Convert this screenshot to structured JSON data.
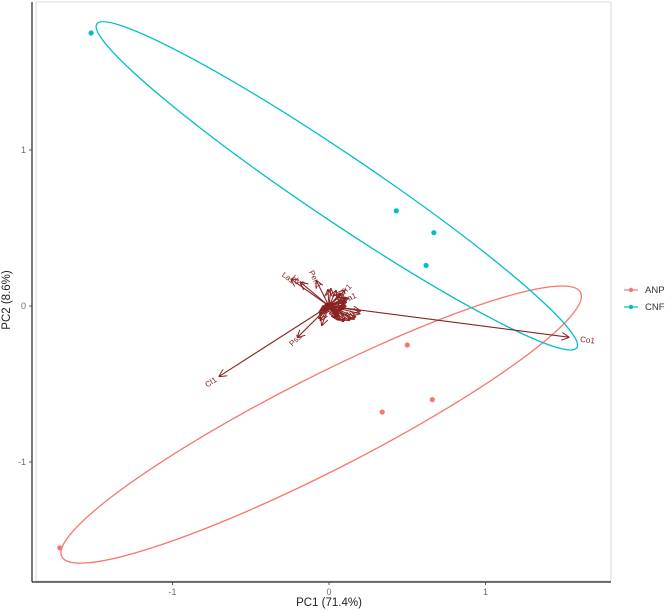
{
  "chart_data": {
    "type": "scatter",
    "subtype": "pca-biplot",
    "title": "",
    "xlabel": "PC1 (71.4%)",
    "ylabel": "PC2 (8.6%)",
    "xlim": [
      -1.85,
      1.82
    ],
    "ylim": [
      -1.77,
      1.95
    ],
    "x_ticks": [
      -1,
      0,
      1
    ],
    "y_ticks": [
      -1,
      0,
      1
    ],
    "x_tick_labels": [
      "-1",
      "0",
      "1"
    ],
    "y_tick_labels": [
      "-1",
      "0",
      "1"
    ],
    "grid": false,
    "legend_position": "right",
    "series": [
      {
        "name": "ANP",
        "color": "#f8766d",
        "points": [
          {
            "x": 0.5,
            "y": -0.25
          },
          {
            "x": 0.34,
            "y": -0.68
          },
          {
            "x": 0.66,
            "y": -0.6
          },
          {
            "x": -1.72,
            "y": -1.55
          }
        ],
        "ellipse": {
          "cx": -0.05,
          "cy": -0.76,
          "rx": 1.86,
          "ry": 0.3,
          "angle_deg": -27
        }
      },
      {
        "name": "CNF",
        "color": "#00bfc4",
        "points": [
          {
            "x": -1.52,
            "y": 1.75
          },
          {
            "x": 0.43,
            "y": 0.61
          },
          {
            "x": 0.67,
            "y": 0.47
          },
          {
            "x": 0.62,
            "y": 0.26
          }
        ],
        "ellipse": {
          "cx": 0.05,
          "cy": 0.77,
          "rx": 1.85,
          "ry": 0.21,
          "angle_deg": 34
        }
      }
    ],
    "loadings": {
      "color": "#8b2323",
      "vectors": [
        {
          "label": "Co1",
          "x": 1.53,
          "y": -0.2
        },
        {
          "label": "Cl1",
          "x": -0.7,
          "y": -0.45
        },
        {
          "label": "Ps1",
          "x": -0.2,
          "y": -0.2
        },
        {
          "label": "Pen1",
          "x": -0.08,
          "y": 0.16
        },
        {
          "label": "Hy2",
          "x": -0.18,
          "y": 0.15
        },
        {
          "label": "La1",
          "x": -0.24,
          "y": 0.17
        },
        {
          "label": "Tr1",
          "x": 0.1,
          "y": 0.1
        },
        {
          "label": "Pa1",
          "x": 0.12,
          "y": 0.05
        }
      ]
    }
  },
  "legend": {
    "items": [
      {
        "label": "ANP",
        "color": "#f8766d"
      },
      {
        "label": "CNF",
        "color": "#00bfc4"
      }
    ]
  },
  "axes": {
    "x_title": "PC1 (71.4%)",
    "y_title": "PC2 (8.6%)",
    "x_ticks": [
      "-1",
      "0",
      "1"
    ],
    "y_ticks": [
      "1",
      "0",
      "-1"
    ]
  }
}
